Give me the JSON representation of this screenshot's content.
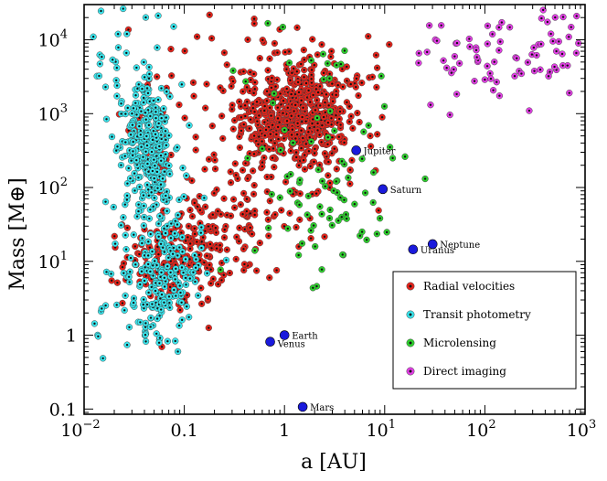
{
  "chart_data": {
    "type": "scatter",
    "xlabel": "a [AU]",
    "ylabel": "Mass [M⊕]",
    "xscale": "log",
    "yscale": "log",
    "xlim": [
      0.01,
      1000
    ],
    "ylim": [
      0.085,
      30000
    ],
    "x_ticks": [
      {
        "value": 0.01,
        "base": "10",
        "exp": "−2"
      },
      {
        "value": 0.1,
        "base": "0.1",
        "exp": ""
      },
      {
        "value": 1,
        "base": "1",
        "exp": ""
      },
      {
        "value": 10,
        "base": "10",
        "exp": "1"
      },
      {
        "value": 100,
        "base": "10",
        "exp": "2"
      },
      {
        "value": 1000,
        "base": "10",
        "exp": "3"
      }
    ],
    "y_ticks": [
      {
        "value": 0.1,
        "base": "0.1",
        "exp": ""
      },
      {
        "value": 1,
        "base": "1",
        "exp": ""
      },
      {
        "value": 10,
        "base": "10",
        "exp": "1"
      },
      {
        "value": 100,
        "base": "10",
        "exp": "2"
      },
      {
        "value": 1000,
        "base": "10",
        "exp": "3"
      },
      {
        "value": 10000,
        "base": "10",
        "exp": "4"
      }
    ],
    "legend_position": "bottom-right",
    "series": [
      {
        "name": "Radial velocities",
        "fill": "#e8231a",
        "dot": "#111111",
        "marker": "ring-dot",
        "clusters": [
          {
            "x_center": 1.2,
            "x_spread_dex": 0.28,
            "y_center": 900,
            "y_spread_dex": 0.35,
            "count": 420
          },
          {
            "x_center": 2.5,
            "x_spread_dex": 0.3,
            "y_center": 700,
            "y_spread_dex": 0.55,
            "count": 120
          },
          {
            "x_center": 0.08,
            "x_spread_dex": 0.25,
            "y_center": 10,
            "y_spread_dex": 0.3,
            "count": 170
          },
          {
            "x_center": 0.3,
            "x_spread_dex": 0.35,
            "y_center": 40,
            "y_spread_dex": 0.45,
            "count": 110
          },
          {
            "x_center": 0.05,
            "x_spread_dex": 0.1,
            "y_center": 300,
            "y_spread_dex": 0.3,
            "count": 45
          },
          {
            "x_center": 0.5,
            "x_spread_dex": 0.55,
            "y_center": 3000,
            "y_spread_dex": 0.5,
            "count": 70
          }
        ]
      },
      {
        "name": "Transit photometry",
        "fill": "#39e6ee",
        "dot": "#111111",
        "marker": "ring-dot",
        "clusters": [
          {
            "x_center": 0.045,
            "x_spread_dex": 0.12,
            "y_center": 400,
            "y_spread_dex": 0.35,
            "count": 260
          },
          {
            "x_center": 0.06,
            "x_spread_dex": 0.2,
            "y_center": 7,
            "y_spread_dex": 0.4,
            "count": 150
          },
          {
            "x_center": 0.03,
            "x_spread_dex": 0.25,
            "y_center": 3000,
            "y_spread_dex": 0.5,
            "count": 60
          },
          {
            "x_center": 0.04,
            "x_spread_dex": 0.3,
            "y_center": 2,
            "y_spread_dex": 0.35,
            "count": 40
          },
          {
            "x_center": 0.05,
            "x_spread_dex": 0.2,
            "y_center": 60,
            "y_spread_dex": 0.3,
            "count": 50
          }
        ]
      },
      {
        "name": "Microlensing",
        "fill": "#2ed12e",
        "dot": "#111111",
        "marker": "ring-dot",
        "clusters": [
          {
            "x_center": 2.5,
            "x_spread_dex": 0.35,
            "y_center": 150,
            "y_spread_dex": 0.7,
            "count": 55
          },
          {
            "x_center": 4,
            "x_spread_dex": 0.3,
            "y_center": 20,
            "y_spread_dex": 0.5,
            "count": 20
          },
          {
            "x_center": 1.5,
            "x_spread_dex": 0.4,
            "y_center": 3000,
            "y_spread_dex": 0.5,
            "count": 15
          }
        ]
      },
      {
        "name": "Direct imaging",
        "fill": "#e33ee6",
        "dot": "#111111",
        "marker": "ring-dot",
        "clusters": [
          {
            "x_center": 150,
            "x_spread_dex": 0.45,
            "y_center": 6000,
            "y_spread_dex": 0.3,
            "count": 70
          },
          {
            "x_center": 600,
            "x_spread_dex": 0.2,
            "y_center": 10000,
            "y_spread_dex": 0.25,
            "count": 15
          }
        ]
      }
    ],
    "solar_system": {
      "fill": "#1a1adc",
      "planets": [
        {
          "name": "Venus",
          "a": 0.72,
          "mass": 0.815,
          "label_side": "below-right"
        },
        {
          "name": "Earth",
          "a": 1.0,
          "mass": 1.0,
          "label_side": "right"
        },
        {
          "name": "Mars",
          "a": 1.52,
          "mass": 0.107,
          "label_side": "right"
        },
        {
          "name": "Jupiter",
          "a": 5.2,
          "mass": 318,
          "label_side": "right"
        },
        {
          "name": "Saturn",
          "a": 9.58,
          "mass": 95,
          "label_side": "right"
        },
        {
          "name": "Uranus",
          "a": 19.2,
          "mass": 14.5,
          "label_side": "right"
        },
        {
          "name": "Neptune",
          "a": 30.1,
          "mass": 17.1,
          "label_side": "right"
        }
      ]
    }
  }
}
